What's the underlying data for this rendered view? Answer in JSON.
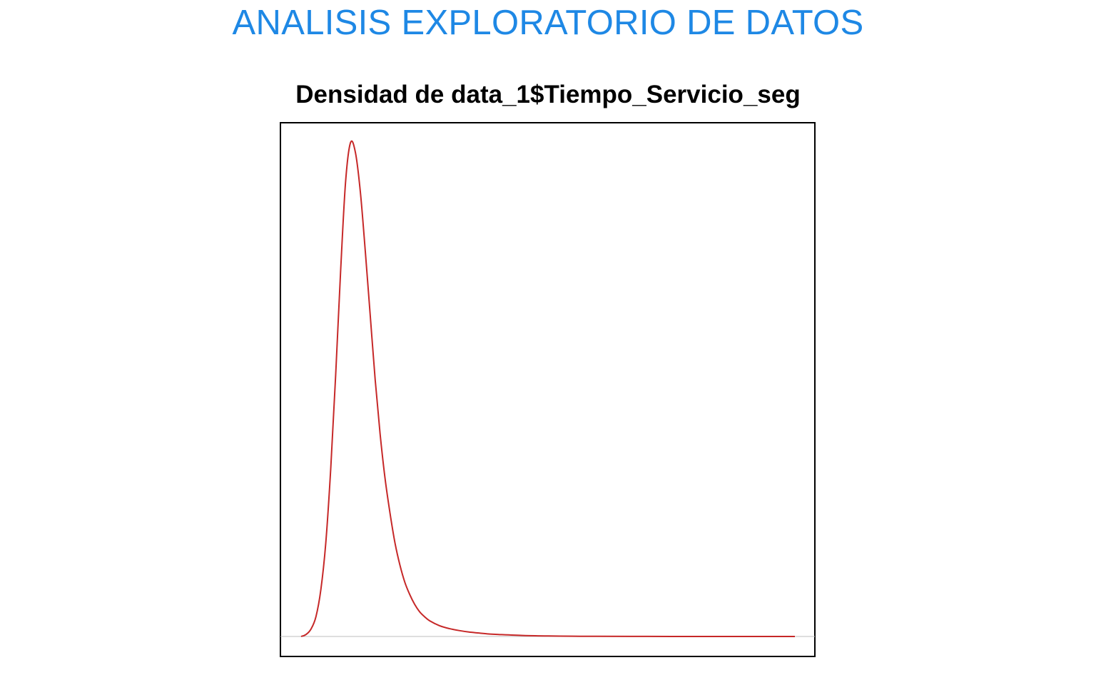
{
  "header": {
    "title": "ANALISIS EXPLORATORIO DE DATOS"
  },
  "colors": {
    "title": "#1e88e5",
    "density_line": "#c62828",
    "baseline": "#bdbdbd",
    "frame": "#000000"
  },
  "chart_data": {
    "type": "line",
    "title": "Densidad de data_1$Tiempo_Servicio_seg",
    "xlabel": "",
    "ylabel": "",
    "axes_visible": false,
    "grid": false,
    "legend": "none",
    "xlim": [
      0,
      100
    ],
    "ylim": [
      -0.04,
      1.04
    ],
    "series": [
      {
        "x": [
          0,
          1,
          2,
          3,
          4,
          5,
          6,
          7,
          8,
          9,
          10,
          11,
          12,
          13,
          14,
          15,
          16,
          17,
          18,
          19,
          20,
          21,
          22,
          23,
          24,
          25,
          26,
          28,
          30,
          32,
          34,
          36,
          38,
          40,
          45,
          50,
          55,
          60,
          70,
          80,
          90,
          100
        ],
        "y": [
          0.0,
          0.004,
          0.015,
          0.04,
          0.095,
          0.19,
          0.34,
          0.53,
          0.74,
          0.92,
          1.0,
          0.98,
          0.9,
          0.78,
          0.65,
          0.52,
          0.41,
          0.32,
          0.25,
          0.19,
          0.145,
          0.11,
          0.085,
          0.065,
          0.05,
          0.04,
          0.032,
          0.022,
          0.016,
          0.012,
          0.009,
          0.007,
          0.005,
          0.004,
          0.002,
          0.001,
          0.0005,
          0.0003,
          0.0001,
          0.0,
          0.0,
          0.0
        ]
      }
    ]
  }
}
